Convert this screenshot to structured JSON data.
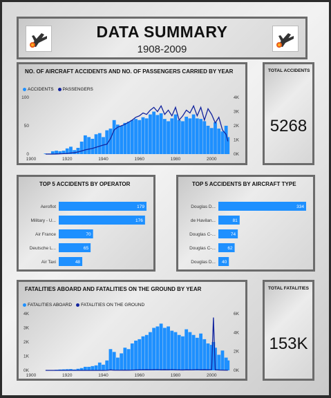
{
  "header": {
    "title": "DATA SUMMARY",
    "subtitle": "1908-2009"
  },
  "colors": {
    "accent": "#1e90ff",
    "dark": "#12249e"
  },
  "kpis": {
    "accidents": {
      "label": "TOTAL ACCIDENTS",
      "value": "5268"
    },
    "fatalities": {
      "label": "TOTAL FATALITIES",
      "value": "153K"
    }
  },
  "chart_data": [
    {
      "type": "bar",
      "title": "NO. OF AIRCRAFT ACCIDENTS AND NO. OF PASSENGERS CARRIED BY YEAR",
      "legend": [
        "ACCIDENTS",
        "PASSENGERS"
      ],
      "x_ticks": [
        "1900",
        "1920",
        "1940",
        "1960",
        "1980",
        "2000"
      ],
      "y_ticks_left": [
        "0",
        "50",
        "100"
      ],
      "y_ticks_right": [
        "0K",
        "1K",
        "2K",
        "3K",
        "4K"
      ],
      "xlim": [
        1900,
        2011
      ],
      "ylim_left": [
        0,
        100
      ],
      "ylim_right": [
        0,
        4000
      ],
      "x": [
        1908,
        1910,
        1912,
        1914,
        1916,
        1918,
        1920,
        1922,
        1924,
        1926,
        1928,
        1930,
        1932,
        1934,
        1936,
        1938,
        1940,
        1942,
        1944,
        1946,
        1948,
        1950,
        1952,
        1954,
        1956,
        1958,
        1960,
        1962,
        1964,
        1966,
        1968,
        1970,
        1972,
        1974,
        1976,
        1978,
        1980,
        1982,
        1984,
        1986,
        1988,
        1990,
        1992,
        1994,
        1996,
        1998,
        2000,
        2002,
        2004,
        2006,
        2008,
        2009
      ],
      "series": [
        {
          "name": "ACCIDENTS",
          "values": [
            1,
            1,
            5,
            6,
            5,
            6,
            10,
            13,
            7,
            11,
            22,
            33,
            30,
            27,
            35,
            37,
            30,
            42,
            45,
            60,
            52,
            50,
            55,
            57,
            60,
            62,
            60,
            65,
            63,
            70,
            75,
            69,
            72,
            62,
            58,
            63,
            70,
            60,
            58,
            66,
            63,
            70,
            63,
            62,
            58,
            50,
            46,
            56,
            45,
            40,
            50,
            30
          ]
        },
        {
          "name": "PASSENGERS",
          "values": [
            0,
            0,
            0,
            10,
            20,
            30,
            50,
            80,
            100,
            150,
            220,
            300,
            350,
            400,
            480,
            560,
            640,
            700,
            1100,
            1700,
            1900,
            2000,
            2100,
            2250,
            2400,
            2600,
            2700,
            2900,
            2800,
            3100,
            3300,
            3000,
            3400,
            2800,
            3100,
            2700,
            3300,
            2400,
            2700,
            3100,
            2900,
            3400,
            2700,
            3300,
            2400,
            3200,
            2800,
            2200,
            2600,
            1700,
            1400,
            900
          ]
        }
      ]
    },
    {
      "type": "bar",
      "title": "TOP 5 ACCIDENTS BY OPERATOR",
      "categories": [
        "Aeroflot",
        "Military - U...",
        "Air France",
        "Deutsche L...",
        "Air Taxi"
      ],
      "values": [
        179,
        176,
        70,
        65,
        48
      ]
    },
    {
      "type": "bar",
      "title": "TOP 5 ACCIDENTS BY AIRCRAFT TYPE",
      "categories": [
        "Douglas D...",
        "de Havilan...",
        "Douglas C-...",
        "Douglas C-...",
        "Douglas D..."
      ],
      "values": [
        334,
        81,
        74,
        62,
        40
      ]
    },
    {
      "type": "bar",
      "title": "FATALITIES ABOARD AND FATALITIES ON THE GROUND BY YEAR",
      "legend": [
        "FATALITIES ABOARD",
        "FATALITIES ON THE GROUND"
      ],
      "x_ticks": [
        "1900",
        "1920",
        "1940",
        "1960",
        "1980",
        "2000"
      ],
      "y_ticks_left": [
        "0K",
        "1K",
        "2K",
        "3K",
        "4K"
      ],
      "y_ticks_right": [
        "0K",
        "2K",
        "4K",
        "6K"
      ],
      "xlim": [
        1900,
        2011
      ],
      "ylim_left": [
        0,
        4000
      ],
      "ylim_right": [
        0,
        6000
      ],
      "x": [
        1908,
        1910,
        1912,
        1914,
        1916,
        1918,
        1920,
        1922,
        1924,
        1926,
        1928,
        1930,
        1932,
        1934,
        1936,
        1938,
        1940,
        1942,
        1944,
        1946,
        1948,
        1950,
        1952,
        1954,
        1956,
        1958,
        1960,
        1962,
        1964,
        1966,
        1968,
        1970,
        1972,
        1974,
        1976,
        1978,
        1980,
        1982,
        1984,
        1986,
        1988,
        1990,
        1992,
        1994,
        1996,
        1998,
        2000,
        2001,
        2002,
        2004,
        2006,
        2008,
        2009
      ],
      "series": [
        {
          "name": "FATALITIES ABOARD",
          "values": [
            1,
            2,
            20,
            40,
            60,
            70,
            80,
            90,
            60,
            110,
            160,
            250,
            250,
            300,
            350,
            550,
            400,
            700,
            1500,
            1300,
            900,
            1200,
            1600,
            1500,
            1900,
            2100,
            2200,
            2400,
            2500,
            2700,
            3000,
            3100,
            3300,
            3000,
            3100,
            2800,
            2700,
            2500,
            2400,
            2900,
            2700,
            2500,
            2300,
            2600,
            2200,
            1900,
            1800,
            2000,
            1600,
            1100,
            1400,
            900,
            700
          ]
        },
        {
          "name": "FATALITIES ON THE GROUND",
          "values": [
            0,
            0,
            0,
            0,
            0,
            0,
            0,
            0,
            0,
            0,
            0,
            0,
            0,
            0,
            0,
            0,
            0,
            10,
            50,
            20,
            20,
            20,
            30,
            20,
            30,
            40,
            50,
            60,
            70,
            60,
            70,
            80,
            60,
            70,
            60,
            80,
            60,
            50,
            40,
            60,
            50,
            60,
            80,
            60,
            70,
            60,
            80,
            5600,
            60,
            40,
            30,
            20,
            20
          ]
        }
      ]
    }
  ]
}
